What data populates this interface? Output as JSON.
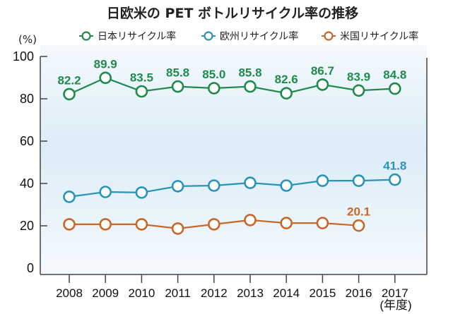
{
  "chart_data": {
    "type": "line",
    "title": "日欧米の PET ボトルリサイクル率の推移",
    "ylabel": "(%)",
    "xlabel": "(年度)",
    "ylim": [
      0,
      100
    ],
    "yticks": [
      0,
      20,
      40,
      60,
      80,
      100
    ],
    "grid": false,
    "legend_position": "top",
    "categories": [
      "2008",
      "2009",
      "2010",
      "2011",
      "2012",
      "2013",
      "2014",
      "2015",
      "2016",
      "2017"
    ],
    "series": [
      {
        "name": "日本リサイクル率",
        "color": "#1f8a4c",
        "values": [
          82.2,
          89.9,
          83.5,
          85.8,
          85.0,
          85.8,
          82.6,
          86.7,
          83.9,
          84.8
        ],
        "labels": [
          "82.2",
          "89.9",
          "83.5",
          "85.8",
          "85.0",
          "85.8",
          "82.6",
          "86.7",
          "83.9",
          "84.8"
        ]
      },
      {
        "name": "欧州リサイクル率",
        "color": "#2a93b8",
        "values": [
          33.7,
          36.0,
          35.7,
          38.7,
          39.0,
          40.3,
          39.0,
          41.3,
          41.3,
          41.8
        ],
        "labels": [
          null,
          null,
          null,
          null,
          null,
          null,
          null,
          null,
          null,
          "41.8"
        ]
      },
      {
        "name": "米国リサイクル率",
        "color": "#c8672a",
        "values": [
          20.7,
          20.7,
          20.7,
          18.7,
          20.7,
          22.7,
          21.3,
          21.3,
          20.1,
          null
        ],
        "labels": [
          null,
          null,
          null,
          null,
          null,
          null,
          null,
          null,
          "20.1",
          null
        ]
      }
    ]
  }
}
